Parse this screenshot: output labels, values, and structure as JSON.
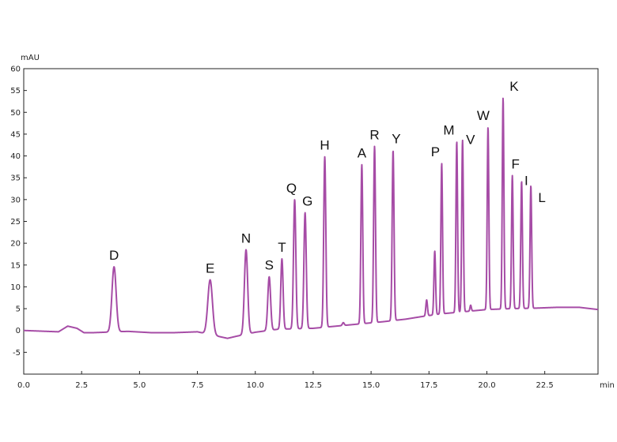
{
  "chart_data": {
    "type": "line",
    "title": "",
    "xlabel": "min",
    "ylabel": "mAU",
    "xlim": [
      0,
      24.8
    ],
    "ylim": [
      -10,
      60
    ],
    "x_ticks": [
      "0.0",
      "2.5",
      "5.0",
      "7.5",
      "10.0",
      "12.5",
      "15.0",
      "17.5",
      "20.0",
      "22.5"
    ],
    "y_ticks": [
      "-5",
      "0",
      "5",
      "10",
      "15",
      "20",
      "25",
      "30",
      "35",
      "40",
      "45",
      "50",
      "55",
      "60"
    ],
    "grid": false,
    "line_color": "#a64ca6",
    "baseline": [
      [
        0,
        0
      ],
      [
        1.0,
        -0.2
      ],
      [
        1.5,
        -0.3
      ],
      [
        1.9,
        1.0
      ],
      [
        2.3,
        0.5
      ],
      [
        2.6,
        -0.5
      ],
      [
        3.0,
        -0.5
      ],
      [
        4.5,
        -0.2
      ],
      [
        5.5,
        -0.5
      ],
      [
        6.5,
        -0.5
      ],
      [
        7.5,
        -0.3
      ],
      [
        8.8,
        -1.8
      ],
      [
        9.2,
        -1.3
      ],
      [
        10.0,
        -0.4
      ],
      [
        11.0,
        0.3
      ],
      [
        12.5,
        0.5
      ],
      [
        13.5,
        1.0
      ],
      [
        14.5,
        1.5
      ],
      [
        15.5,
        2.0
      ],
      [
        16.5,
        2.6
      ],
      [
        17.2,
        3.2
      ],
      [
        18.0,
        3.8
      ],
      [
        19.0,
        4.3
      ],
      [
        20.0,
        4.8
      ],
      [
        21.0,
        5.0
      ],
      [
        22.0,
        5.1
      ],
      [
        23.0,
        5.3
      ],
      [
        24.0,
        5.3
      ],
      [
        24.8,
        4.8
      ]
    ],
    "peaks": [
      {
        "label": "D",
        "rt": 3.9,
        "height": 14.6,
        "width": 0.09
      },
      {
        "label": "E",
        "rt": 8.05,
        "height": 11.6,
        "width": 0.1
      },
      {
        "label": "N",
        "rt": 9.6,
        "height": 18.5,
        "width": 0.07
      },
      {
        "label": "S",
        "rt": 10.6,
        "height": 12.3,
        "width": 0.06
      },
      {
        "label": "T",
        "rt": 11.15,
        "height": 16.4,
        "width": 0.05
      },
      {
        "label": "Q",
        "rt": 11.7,
        "height": 30.0,
        "width": 0.05
      },
      {
        "label": "G",
        "rt": 12.15,
        "height": 27.0,
        "width": 0.05
      },
      {
        "label": "H",
        "rt": 13.0,
        "height": 39.8,
        "width": 0.045
      },
      {
        "label": "",
        "rt": 13.8,
        "height": 1.8,
        "width": 0.04
      },
      {
        "label": "A",
        "rt": 14.6,
        "height": 38.0,
        "width": 0.04
      },
      {
        "label": "R",
        "rt": 15.15,
        "height": 42.2,
        "width": 0.04
      },
      {
        "label": "Y",
        "rt": 15.95,
        "height": 41.3,
        "width": 0.04
      },
      {
        "label": "",
        "rt": 17.4,
        "height": 7.0,
        "width": 0.035
      },
      {
        "label": "",
        "rt": 17.75,
        "height": 18.2,
        "width": 0.035
      },
      {
        "label": "P",
        "rt": 18.05,
        "height": 38.3,
        "width": 0.035
      },
      {
        "label": "M",
        "rt": 18.7,
        "height": 43.3,
        "width": 0.035
      },
      {
        "label": "V",
        "rt": 18.95,
        "height": 43.6,
        "width": 0.035
      },
      {
        "label": "",
        "rt": 19.3,
        "height": 5.8,
        "width": 0.03
      },
      {
        "label": "W",
        "rt": 20.05,
        "height": 46.6,
        "width": 0.035
      },
      {
        "label": "K",
        "rt": 20.7,
        "height": 53.3,
        "width": 0.035
      },
      {
        "label": "F",
        "rt": 21.1,
        "height": 35.5,
        "width": 0.035
      },
      {
        "label": "I",
        "rt": 21.5,
        "height": 34.2,
        "width": 0.035
      },
      {
        "label": "L",
        "rt": 21.9,
        "height": 33.2,
        "width": 0.035
      }
    ]
  }
}
